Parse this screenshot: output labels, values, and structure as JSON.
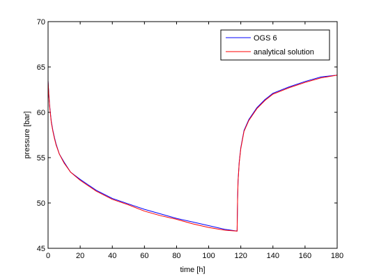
{
  "chart_data": {
    "type": "line",
    "xlabel": "time [h]",
    "ylabel": "pressure [bar]",
    "xlim": [
      0,
      180
    ],
    "ylim": [
      45,
      70
    ],
    "xticks": [
      0,
      20,
      40,
      60,
      80,
      100,
      120,
      140,
      160,
      180
    ],
    "yticks": [
      45,
      50,
      55,
      60,
      65,
      70
    ],
    "grid": false,
    "legend_position": "top-right",
    "series": [
      {
        "name": "OGS 6",
        "color": "#0000ff",
        "x": [
          0,
          0.5,
          1,
          2,
          3,
          4,
          5,
          7,
          10,
          14,
          20,
          30,
          40,
          50,
          60,
          70,
          80,
          90,
          100,
          110,
          117.7,
          118,
          118.3,
          119,
          120,
          122,
          125,
          130,
          135,
          140,
          150,
          160,
          170,
          180
        ],
        "y": [
          63.5,
          61.9,
          60.7,
          59.0,
          58.0,
          57.2,
          56.5,
          55.4,
          54.5,
          53.4,
          52.6,
          51.4,
          50.5,
          49.9,
          49.3,
          48.8,
          48.3,
          47.9,
          47.5,
          47.1,
          46.9,
          50.5,
          52.5,
          54.5,
          56.1,
          58.0,
          59.2,
          60.5,
          61.4,
          62.1,
          62.8,
          63.4,
          63.9,
          64.1
        ]
      },
      {
        "name": "analytical solution",
        "color": "#ff0000",
        "x": [
          0,
          0.5,
          1,
          2,
          3,
          4,
          5,
          7,
          10,
          14,
          20,
          30,
          40,
          50,
          60,
          70,
          80,
          90,
          100,
          110,
          117.7,
          118,
          118.3,
          119,
          120,
          122,
          125,
          130,
          135,
          140,
          150,
          160,
          170,
          180
        ],
        "y": [
          63.5,
          61.8,
          60.6,
          58.9,
          57.9,
          57.1,
          56.4,
          55.4,
          54.4,
          53.4,
          52.5,
          51.3,
          50.4,
          49.8,
          49.1,
          48.6,
          48.2,
          47.7,
          47.3,
          47.0,
          46.9,
          50.4,
          52.4,
          54.4,
          56.0,
          57.9,
          59.1,
          60.4,
          61.3,
          62.0,
          62.7,
          63.3,
          63.8,
          64.1
        ]
      }
    ]
  }
}
